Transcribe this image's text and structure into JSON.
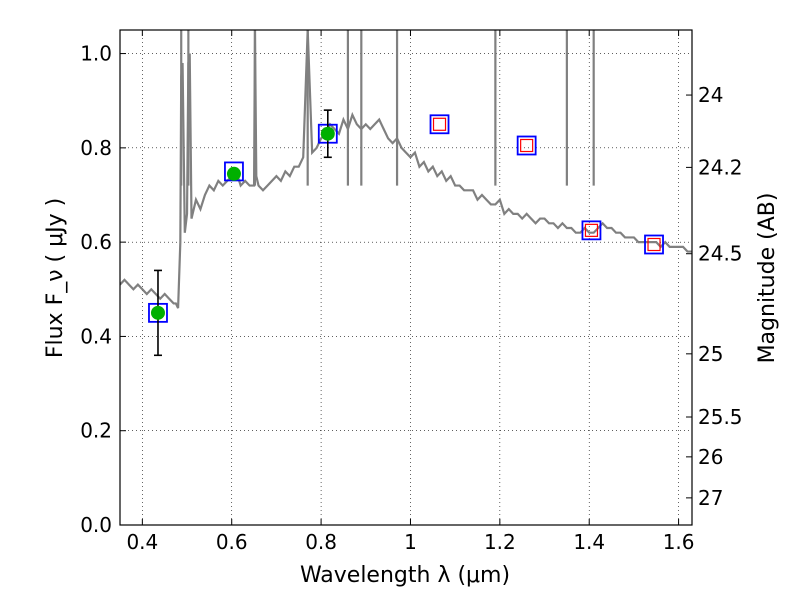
{
  "chart_data": {
    "type": "scatter",
    "xlabel": "Wavelength  λ (μm)",
    "ylabel": "Flux  F_ν  ( μJy )",
    "ylabel_right": "Magnitude (AB)",
    "xlim": [
      0.35,
      1.63
    ],
    "ylim": [
      0.0,
      1.05
    ],
    "grid": true,
    "x_ticks": [
      0.4,
      0.6,
      0.8,
      1.0,
      1.2,
      1.4,
      1.6
    ],
    "x_tick_labels": [
      "0.4",
      "0.6",
      "0.8",
      "1",
      "1.2",
      "1.4",
      "1.6"
    ],
    "y_ticks": [
      0.0,
      0.2,
      0.4,
      0.6,
      0.8,
      1.0
    ],
    "y_tick_labels": [
      "0.0",
      "0.2",
      "0.4",
      "0.6",
      "0.8",
      "1.0"
    ],
    "right_ticks": [
      {
        "label": "24",
        "mag": 24.0
      },
      {
        "label": "24.2",
        "mag": 24.2
      },
      {
        "label": "24.5",
        "mag": 24.5
      },
      {
        "label": "25",
        "mag": 25.0
      },
      {
        "label": "25.5",
        "mag": 25.5
      },
      {
        "label": "26",
        "mag": 26.0
      },
      {
        "label": "27",
        "mag": 27.0
      }
    ],
    "series": [
      {
        "kind": "line",
        "color": "#808080",
        "x": [
          0.35,
          0.36,
          0.37,
          0.38,
          0.39,
          0.4,
          0.41,
          0.42,
          0.43,
          0.44,
          0.45,
          0.46,
          0.47,
          0.475,
          0.48,
          0.485,
          0.487,
          0.49,
          0.495,
          0.5,
          0.503,
          0.506,
          0.51,
          0.52,
          0.53,
          0.54,
          0.55,
          0.56,
          0.57,
          0.58,
          0.59,
          0.6,
          0.61,
          0.62,
          0.63,
          0.64,
          0.65,
          0.652,
          0.655,
          0.66,
          0.67,
          0.68,
          0.69,
          0.7,
          0.71,
          0.72,
          0.73,
          0.74,
          0.75,
          0.76,
          0.77,
          0.78,
          0.79,
          0.8,
          0.81,
          0.82,
          0.83,
          0.84,
          0.85,
          0.86,
          0.87,
          0.88,
          0.89,
          0.9,
          0.91,
          0.92,
          0.93,
          0.94,
          0.95,
          0.96,
          0.97,
          0.98,
          0.99,
          1.0,
          1.01,
          1.02,
          1.03,
          1.04,
          1.05,
          1.06,
          1.07,
          1.08,
          1.09,
          1.1,
          1.11,
          1.12,
          1.13,
          1.14,
          1.15,
          1.16,
          1.17,
          1.18,
          1.19,
          1.2,
          1.21,
          1.22,
          1.23,
          1.24,
          1.25,
          1.26,
          1.27,
          1.28,
          1.29,
          1.3,
          1.31,
          1.32,
          1.33,
          1.34,
          1.35,
          1.36,
          1.37,
          1.38,
          1.39,
          1.4,
          1.41,
          1.42,
          1.43,
          1.44,
          1.45,
          1.46,
          1.47,
          1.48,
          1.49,
          1.5,
          1.51,
          1.52,
          1.53,
          1.54,
          1.55,
          1.56,
          1.57,
          1.58,
          1.59,
          1.6,
          1.61,
          1.62,
          1.63
        ],
        "y": [
          0.51,
          0.52,
          0.51,
          0.5,
          0.51,
          0.5,
          0.49,
          0.5,
          0.49,
          0.48,
          0.49,
          0.48,
          0.47,
          0.47,
          0.46,
          0.6,
          0.95,
          0.98,
          0.62,
          0.66,
          0.98,
          1.0,
          0.65,
          0.69,
          0.67,
          0.7,
          0.72,
          0.71,
          0.73,
          0.72,
          0.73,
          0.74,
          0.75,
          0.72,
          0.73,
          0.72,
          0.72,
          1.05,
          0.74,
          0.72,
          0.71,
          0.72,
          0.73,
          0.74,
          0.73,
          0.75,
          0.74,
          0.76,
          0.76,
          0.78,
          1.05,
          0.79,
          0.8,
          0.82,
          0.83,
          0.85,
          0.84,
          0.83,
          0.86,
          0.84,
          0.87,
          0.85,
          0.84,
          0.85,
          0.84,
          0.85,
          0.86,
          0.84,
          0.82,
          0.81,
          0.82,
          0.8,
          0.79,
          0.78,
          0.79,
          0.76,
          0.77,
          0.75,
          0.76,
          0.74,
          0.75,
          0.73,
          0.74,
          0.72,
          0.72,
          0.71,
          0.71,
          0.71,
          0.69,
          0.7,
          0.69,
          0.68,
          0.68,
          0.69,
          0.66,
          0.67,
          0.66,
          0.66,
          0.65,
          0.66,
          0.65,
          0.64,
          0.65,
          0.65,
          0.64,
          0.64,
          0.63,
          0.64,
          0.63,
          0.63,
          0.62,
          0.62,
          0.63,
          0.62,
          0.62,
          0.63,
          0.64,
          0.63,
          0.63,
          0.62,
          0.62,
          0.61,
          0.61,
          0.61,
          0.6,
          0.6,
          0.6,
          0.6,
          0.6,
          0.59,
          0.6,
          0.59,
          0.59,
          0.59,
          0.59,
          0.58,
          0.58
        ]
      },
      {
        "kind": "spikes",
        "color": "#808080",
        "x": [
          0.487,
          0.503,
          0.652,
          0.77,
          0.86,
          0.89,
          0.97,
          1.19,
          1.35,
          1.41
        ],
        "y_top": [
          1.05,
          1.05,
          1.05,
          1.05,
          1.05,
          1.05,
          1.05,
          1.05,
          1.05,
          1.05
        ]
      },
      {
        "kind": "model-points",
        "marker": "square",
        "edgecolor": "#0000ff",
        "x": [
          0.435,
          0.605,
          0.815,
          1.065,
          1.26,
          1.405,
          1.545
        ],
        "y": [
          0.45,
          0.75,
          0.83,
          0.85,
          0.805,
          0.625,
          0.595
        ]
      },
      {
        "kind": "synthetic-points",
        "marker": "square",
        "edgecolor": "#ff0000",
        "x": [
          1.065,
          1.26,
          1.405,
          1.545
        ],
        "y": [
          0.85,
          0.805,
          0.625,
          0.595
        ]
      },
      {
        "kind": "observed",
        "marker": "circle",
        "color": "#00b000",
        "x": [
          0.435,
          0.605,
          0.815
        ],
        "y": [
          0.45,
          0.745,
          0.83
        ],
        "yerr": [
          0.09,
          0.0,
          0.05
        ]
      }
    ]
  }
}
